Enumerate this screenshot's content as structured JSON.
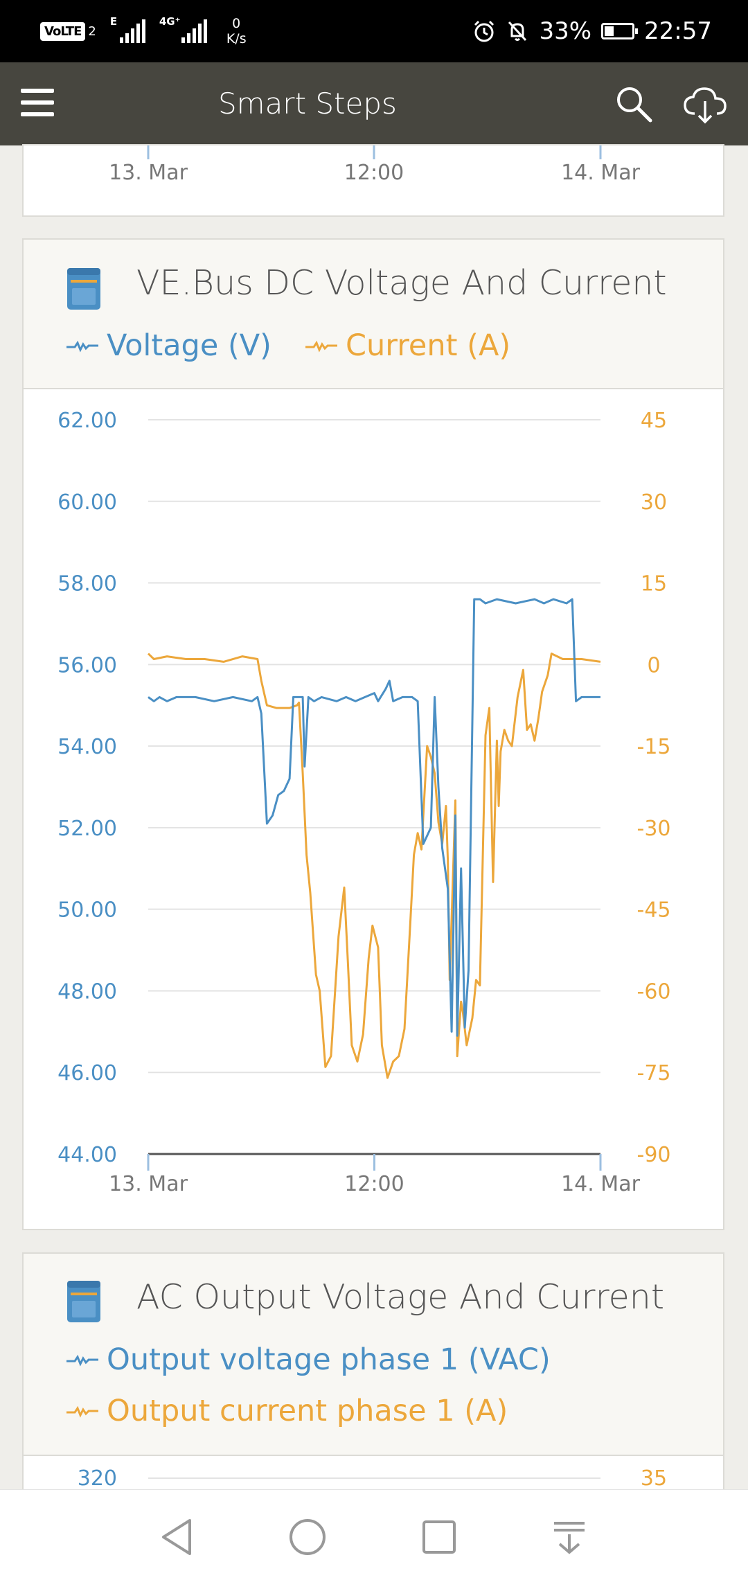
{
  "status_bar": {
    "volte": "VoLTE",
    "sim": "2",
    "sig1_tag": "E",
    "sig2_tag": "4G⁺",
    "net_speed_value": "0",
    "net_speed_unit": "K/s",
    "battery": "33%",
    "time": "22:57"
  },
  "app_bar": {
    "title": "Smart Steps"
  },
  "top_card": {
    "x_ticks": [
      "13. Mar",
      "12:00",
      "14. Mar"
    ]
  },
  "dc_card": {
    "title": "VE.Bus DC Voltage And Current",
    "legend": [
      {
        "label": "Voltage (V)",
        "color": "#4a8fc4"
      },
      {
        "label": "Current (A)",
        "color": "#eca73b"
      }
    ]
  },
  "chart_data": {
    "type": "line",
    "x_ticks": [
      "13. Mar",
      "12:00",
      "14. Mar"
    ],
    "y_left": {
      "ticks": [
        "62.00",
        "60.00",
        "58.00",
        "56.00",
        "54.00",
        "52.00",
        "50.00",
        "48.00",
        "46.00",
        "44.00"
      ],
      "range": [
        44,
        62
      ]
    },
    "y_right": {
      "ticks": [
        "45",
        "30",
        "15",
        "0",
        "-15",
        "-30",
        "-45",
        "-60",
        "-75",
        "-90"
      ],
      "range": [
        -90,
        45
      ]
    },
    "grid": true,
    "x_range_hours": [
      0,
      24
    ],
    "series": [
      {
        "name": "Voltage (V)",
        "axis": "left",
        "color": "#4a8fc4",
        "points": [
          [
            0,
            55.2
          ],
          [
            0.3,
            55.1
          ],
          [
            0.6,
            55.2
          ],
          [
            1,
            55.1
          ],
          [
            1.5,
            55.2
          ],
          [
            2.5,
            55.2
          ],
          [
            3.5,
            55.1
          ],
          [
            4.5,
            55.2
          ],
          [
            5.5,
            55.1
          ],
          [
            5.8,
            55.2
          ],
          [
            6,
            54.8
          ],
          [
            6.3,
            52.1
          ],
          [
            6.6,
            52.3
          ],
          [
            6.9,
            52.8
          ],
          [
            7.2,
            52.9
          ],
          [
            7.5,
            53.2
          ],
          [
            7.7,
            55.2
          ],
          [
            8.2,
            55.2
          ],
          [
            8.3,
            53.5
          ],
          [
            8.5,
            55.2
          ],
          [
            8.8,
            55.1
          ],
          [
            9.2,
            55.2
          ],
          [
            10,
            55.1
          ],
          [
            10.5,
            55.2
          ],
          [
            11,
            55.1
          ],
          [
            11.5,
            55.2
          ],
          [
            12,
            55.3
          ],
          [
            12.2,
            55.1
          ],
          [
            12.6,
            55.4
          ],
          [
            12.8,
            55.6
          ],
          [
            13,
            55.1
          ],
          [
            13.5,
            55.2
          ],
          [
            14,
            55.2
          ],
          [
            14.3,
            55.1
          ],
          [
            14.6,
            51.6
          ],
          [
            15,
            52.0
          ],
          [
            15.2,
            55.2
          ],
          [
            15.4,
            53.0
          ],
          [
            15.6,
            51.5
          ],
          [
            15.9,
            50.5
          ],
          [
            16.1,
            47.0
          ],
          [
            16.3,
            52.3
          ],
          [
            16.4,
            46.9
          ],
          [
            16.6,
            51.0
          ],
          [
            16.8,
            47.1
          ],
          [
            17,
            48.5
          ],
          [
            17.3,
            57.6
          ],
          [
            17.6,
            57.6
          ],
          [
            17.9,
            57.5
          ],
          [
            18.5,
            57.6
          ],
          [
            19.5,
            57.5
          ],
          [
            20.5,
            57.6
          ],
          [
            21,
            57.5
          ],
          [
            21.5,
            57.6
          ],
          [
            22.2,
            57.5
          ],
          [
            22.5,
            57.6
          ],
          [
            22.7,
            55.1
          ],
          [
            23,
            55.2
          ],
          [
            23.5,
            55.2
          ],
          [
            24,
            55.2
          ]
        ]
      },
      {
        "name": "Current (A)",
        "axis": "right",
        "color": "#eca73b",
        "points": [
          [
            0,
            2
          ],
          [
            0.3,
            1
          ],
          [
            1,
            1.5
          ],
          [
            2,
            1
          ],
          [
            3,
            1
          ],
          [
            4,
            0.5
          ],
          [
            5,
            1.5
          ],
          [
            5.8,
            1
          ],
          [
            6,
            -3
          ],
          [
            6.3,
            -7.5
          ],
          [
            6.8,
            -8
          ],
          [
            7.5,
            -8
          ],
          [
            7.9,
            -7.5
          ],
          [
            8,
            -7
          ],
          [
            8.2,
            -20
          ],
          [
            8.4,
            -35
          ],
          [
            8.6,
            -42
          ],
          [
            8.9,
            -57
          ],
          [
            9.1,
            -60
          ],
          [
            9.4,
            -74
          ],
          [
            9.7,
            -72
          ],
          [
            10.1,
            -50
          ],
          [
            10.4,
            -41
          ],
          [
            10.6,
            -55
          ],
          [
            10.8,
            -70
          ],
          [
            11.1,
            -73
          ],
          [
            11.4,
            -68
          ],
          [
            11.7,
            -54
          ],
          [
            11.9,
            -48
          ],
          [
            12.2,
            -52
          ],
          [
            12.4,
            -70
          ],
          [
            12.7,
            -76
          ],
          [
            13,
            -73
          ],
          [
            13.3,
            -72
          ],
          [
            13.6,
            -67
          ],
          [
            13.9,
            -48
          ],
          [
            14.1,
            -35
          ],
          [
            14.3,
            -31
          ],
          [
            14.5,
            -34
          ],
          [
            14.8,
            -15
          ],
          [
            15,
            -17
          ],
          [
            15.2,
            -20
          ],
          [
            15.4,
            -29
          ],
          [
            15.6,
            -33
          ],
          [
            15.8,
            -26
          ],
          [
            15.9,
            -36
          ],
          [
            16,
            -58
          ],
          [
            16.3,
            -25
          ],
          [
            16.4,
            -72
          ],
          [
            16.6,
            -62
          ],
          [
            16.7,
            -64
          ],
          [
            16.9,
            -70
          ],
          [
            17.2,
            -65
          ],
          [
            17.4,
            -58
          ],
          [
            17.6,
            -59
          ],
          [
            17.9,
            -13
          ],
          [
            18.1,
            -8
          ],
          [
            18.3,
            -40
          ],
          [
            18.5,
            -14
          ],
          [
            18.6,
            -26
          ],
          [
            18.7,
            -16
          ],
          [
            18.9,
            -12
          ],
          [
            19.1,
            -14
          ],
          [
            19.3,
            -15
          ],
          [
            19.6,
            -6
          ],
          [
            19.9,
            -1
          ],
          [
            20.1,
            -12
          ],
          [
            20.3,
            -11
          ],
          [
            20.5,
            -14
          ],
          [
            20.7,
            -10
          ],
          [
            20.9,
            -5
          ],
          [
            21.2,
            -2
          ],
          [
            21.4,
            2
          ],
          [
            22,
            1
          ],
          [
            23,
            1
          ],
          [
            24,
            0.5
          ]
        ]
      }
    ]
  },
  "ac_card": {
    "title": "AC Output Voltage And Current",
    "legend": [
      {
        "label": "Output voltage phase 1 (VAC)",
        "color": "#4a8fc4"
      },
      {
        "label": "Output current phase 1 (A)",
        "color": "#eca73b"
      }
    ],
    "partial_left_tick": "320",
    "partial_right_tick": "35"
  },
  "nav_bar": {
    "icons": [
      "back-icon",
      "home-icon",
      "recents-icon",
      "notification-pull-icon"
    ]
  }
}
